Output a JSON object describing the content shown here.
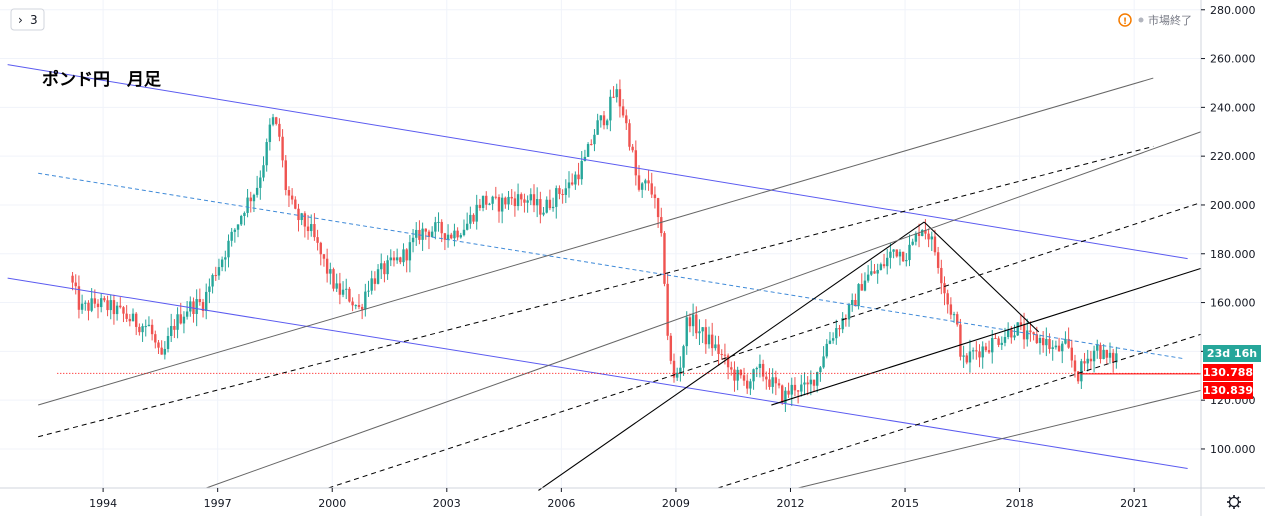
{
  "chart_data": {
    "type": "candlestick",
    "title": "ポンド円　月足",
    "status": "市場終了",
    "interval_button": "3",
    "ylim": [
      84,
      284
    ],
    "xlim": [
      1991.3,
      2022.75
    ],
    "y_ticks": [
      "100.000",
      "120.000",
      "140.000",
      "160.000",
      "180.000",
      "200.000",
      "220.000",
      "240.000",
      "260.000",
      "280.000"
    ],
    "y_tick_values": [
      100,
      120,
      140,
      160,
      180,
      200,
      220,
      240,
      260,
      280
    ],
    "x_ticks": [
      "1994",
      "1997",
      "2000",
      "2003",
      "2006",
      "2009",
      "2012",
      "2015",
      "2018",
      "2021"
    ],
    "x_tick_values": [
      1994,
      1997,
      2000,
      2003,
      2006,
      2009,
      2012,
      2015,
      2018,
      2021
    ],
    "grid": true,
    "colors": {
      "up": "#26a69a",
      "down": "#ef5350",
      "channel_blue": "#5b5bf0",
      "midline": "#3f8ad8",
      "line_black": "#000000",
      "line_gray": "#666666",
      "price_red": "#ff0000",
      "countdown_bg": "#26a69a"
    },
    "price_labels": {
      "countdown": "23d 16h",
      "current": "130.788",
      "previous": "130.839",
      "current_value": 130.788,
      "previous_value": 130.839
    },
    "series": [
      {
        "points": [
          [
            1993.2,
            171
          ],
          [
            1993.5,
            157
          ],
          [
            1993.9,
            160
          ],
          [
            1994.4,
            157
          ],
          [
            1994.9,
            152
          ],
          [
            1995.3,
            150
          ],
          [
            1995.6,
            135
          ],
          [
            1995.9,
            150
          ],
          [
            1996.3,
            158
          ],
          [
            1996.7,
            160
          ],
          [
            1997.0,
            172
          ],
          [
            1997.4,
            185
          ],
          [
            1997.8,
            200
          ],
          [
            1998.1,
            207
          ],
          [
            1998.35,
            222
          ],
          [
            1998.5,
            236
          ],
          [
            1998.7,
            228
          ],
          [
            1998.85,
            208
          ],
          [
            1999.1,
            196
          ],
          [
            1999.5,
            190
          ],
          [
            1999.9,
            175
          ],
          [
            2000.2,
            165
          ],
          [
            2000.5,
            163
          ],
          [
            2000.8,
            157
          ],
          [
            2001.0,
            167
          ],
          [
            2001.3,
            172
          ],
          [
            2001.7,
            176
          ],
          [
            2002.0,
            180
          ],
          [
            2002.4,
            189
          ],
          [
            2002.8,
            190
          ],
          [
            2003.2,
            188
          ],
          [
            2003.6,
            192
          ],
          [
            2004.0,
            202
          ],
          [
            2004.4,
            200
          ],
          [
            2004.8,
            203
          ],
          [
            2005.2,
            202
          ],
          [
            2005.6,
            198
          ],
          [
            2006.0,
            205
          ],
          [
            2006.3,
            208
          ],
          [
            2006.7,
            218
          ],
          [
            2007.0,
            232
          ],
          [
            2007.3,
            238
          ],
          [
            2007.5,
            247
          ],
          [
            2007.7,
            238
          ],
          [
            2007.9,
            225
          ],
          [
            2008.1,
            205
          ],
          [
            2008.4,
            210
          ],
          [
            2008.6,
            195
          ],
          [
            2008.75,
            180
          ],
          [
            2008.85,
            150
          ],
          [
            2009.0,
            127
          ],
          [
            2009.2,
            135
          ],
          [
            2009.4,
            155
          ],
          [
            2009.6,
            150
          ],
          [
            2009.9,
            145
          ],
          [
            2010.2,
            140
          ],
          [
            2010.5,
            132
          ],
          [
            2010.9,
            127
          ],
          [
            2011.3,
            132
          ],
          [
            2011.6,
            127
          ],
          [
            2011.9,
            121
          ],
          [
            2012.2,
            126
          ],
          [
            2012.5,
            124
          ],
          [
            2012.8,
            132
          ],
          [
            2013.0,
            142
          ],
          [
            2013.3,
            150
          ],
          [
            2013.7,
            158
          ],
          [
            2014.0,
            170
          ],
          [
            2014.4,
            173
          ],
          [
            2014.8,
            182
          ],
          [
            2015.1,
            180
          ],
          [
            2015.3,
            184
          ],
          [
            2015.5,
            192
          ],
          [
            2015.7,
            188
          ],
          [
            2015.9,
            180
          ],
          [
            2016.2,
            160
          ],
          [
            2016.4,
            153
          ],
          [
            2016.6,
            135
          ],
          [
            2016.9,
            140
          ],
          [
            2017.2,
            142
          ],
          [
            2017.6,
            146
          ],
          [
            2018.0,
            150
          ],
          [
            2018.3,
            145
          ],
          [
            2018.7,
            145
          ],
          [
            2019.0,
            140
          ],
          [
            2019.3,
            142
          ],
          [
            2019.6,
            130
          ],
          [
            2019.9,
            138
          ],
          [
            2020.1,
            142
          ],
          [
            2020.4,
            136
          ],
          [
            2020.6,
            138
          ]
        ]
      }
    ],
    "trend_lines": [
      {
        "style": "channel",
        "from": [
          1991.5,
          170
        ],
        "to": [
          2022.4,
          92
        ]
      },
      {
        "style": "channel",
        "from": [
          1991.5,
          257.5
        ],
        "to": [
          2022.4,
          178
        ]
      },
      {
        "style": "midline",
        "from": [
          1992.3,
          213
        ],
        "to": [
          2022.3,
          137
        ]
      },
      {
        "style": "black",
        "from": [
          2011.5,
          118
        ],
        "to": [
          2022.75,
          174
        ]
      },
      {
        "style": "black",
        "from": [
          2005.4,
          83
        ],
        "to": [
          2015.5,
          193
        ]
      },
      {
        "style": "black",
        "from": [
          2015.5,
          193
        ],
        "to": [
          2018.5,
          148
        ]
      },
      {
        "style": "gray",
        "from": [
          1992.3,
          118
        ],
        "to": [
          2021.5,
          252
        ]
      },
      {
        "style": "gray",
        "from": [
          1996.7,
          84
        ],
        "to": [
          2022.75,
          230
        ]
      },
      {
        "style": "gray",
        "from": [
          2012.2,
          84
        ],
        "to": [
          2022.75,
          124
        ]
      },
      {
        "style": "dashed",
        "from": [
          1992.3,
          105
        ],
        "to": [
          2021.5,
          224
        ]
      },
      {
        "style": "dashed",
        "from": [
          1999.9,
          84
        ],
        "to": [
          2022.75,
          201
        ]
      },
      {
        "style": "dashed",
        "from": [
          2010.1,
          84
        ],
        "to": [
          2022.75,
          147
        ]
      },
      {
        "style": "price_line",
        "from": [
          1992.8,
          131
        ],
        "to": [
          2022.75,
          131
        ]
      }
    ]
  }
}
